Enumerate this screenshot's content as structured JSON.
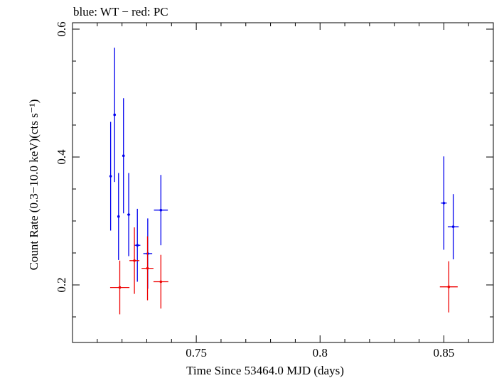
{
  "chart_data": {
    "type": "scatter",
    "title": "blue: WT − red: PC",
    "xlabel": "Time Since 53464.0 MJD (days)",
    "ylabel": "Count Rate (0.3−10.0 keV)(cts s⁻¹)",
    "xlim": [
      0.7,
      0.87
    ],
    "ylim": [
      0.11,
      0.61
    ],
    "x_ticks": [
      0.75,
      0.8,
      0.85
    ],
    "x_tick_labels": [
      "0.75",
      "0.8",
      "0.85"
    ],
    "y_ticks": [
      0.2,
      0.4,
      0.6
    ],
    "y_tick_labels": [
      "0.2",
      "0.4",
      "0.6"
    ],
    "grid": false,
    "series": [
      {
        "name": "WT",
        "color": "#0000ee",
        "points": [
          {
            "x": 0.7154,
            "xerr": 0.0003,
            "y": 0.37,
            "yerr_lo": 0.085,
            "yerr_hi": 0.085
          },
          {
            "x": 0.717,
            "xerr": 0.0003,
            "y": 0.466,
            "yerr_lo": 0.105,
            "yerr_hi": 0.105
          },
          {
            "x": 0.7186,
            "xerr": 0.0003,
            "y": 0.307,
            "yerr_lo": 0.068,
            "yerr_hi": 0.068
          },
          {
            "x": 0.7206,
            "xerr": 0.0005,
            "y": 0.402,
            "yerr_lo": 0.09,
            "yerr_hi": 0.09
          },
          {
            "x": 0.7227,
            "xerr": 0.0006,
            "y": 0.31,
            "yerr_lo": 0.065,
            "yerr_hi": 0.065
          },
          {
            "x": 0.7262,
            "xerr": 0.0012,
            "y": 0.262,
            "yerr_lo": 0.057,
            "yerr_hi": 0.057
          },
          {
            "x": 0.7304,
            "xerr": 0.0018,
            "y": 0.249,
            "yerr_lo": 0.055,
            "yerr_hi": 0.055
          },
          {
            "x": 0.7357,
            "xerr": 0.0028,
            "y": 0.317,
            "yerr_lo": 0.055,
            "yerr_hi": 0.055
          },
          {
            "x": 0.85,
            "xerr": 0.0012,
            "y": 0.328,
            "yerr_lo": 0.073,
            "yerr_hi": 0.073
          },
          {
            "x": 0.8538,
            "xerr": 0.0022,
            "y": 0.291,
            "yerr_lo": 0.051,
            "yerr_hi": 0.051
          }
        ]
      },
      {
        "name": "PC",
        "color": "#ee0000",
        "points": [
          {
            "x": 0.7191,
            "xerr": 0.0039,
            "y": 0.196,
            "yerr_lo": 0.042,
            "yerr_hi": 0.042
          },
          {
            "x": 0.725,
            "xerr": 0.002,
            "y": 0.238,
            "yerr_lo": 0.052,
            "yerr_hi": 0.052
          },
          {
            "x": 0.7303,
            "xerr": 0.0024,
            "y": 0.226,
            "yerr_lo": 0.05,
            "yerr_hi": 0.05
          },
          {
            "x": 0.7357,
            "xerr": 0.003,
            "y": 0.205,
            "yerr_lo": 0.042,
            "yerr_hi": 0.042
          },
          {
            "x": 0.852,
            "xerr": 0.0036,
            "y": 0.197,
            "yerr_lo": 0.04,
            "yerr_hi": 0.04
          }
        ]
      }
    ]
  }
}
